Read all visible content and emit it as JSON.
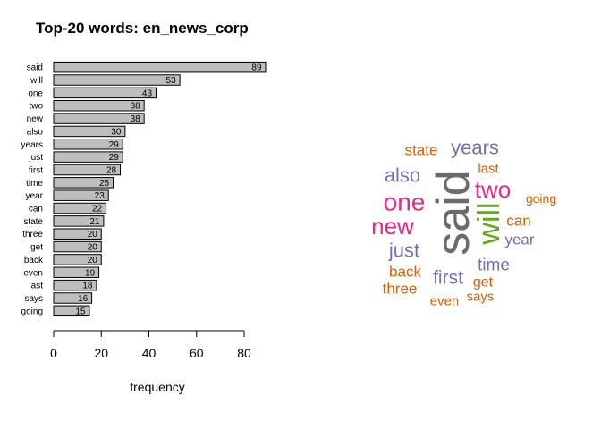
{
  "chart_data": [
    {
      "type": "bar",
      "orientation": "horizontal",
      "title": "Top-20 words: en_news_corp",
      "xlabel": "frequency",
      "ylabel": "",
      "categories": [
        "said",
        "will",
        "one",
        "two",
        "new",
        "also",
        "years",
        "just",
        "first",
        "time",
        "year",
        "can",
        "state",
        "three",
        "get",
        "back",
        "even",
        "last",
        "says",
        "going"
      ],
      "values": [
        89,
        53,
        43,
        38,
        38,
        30,
        29,
        29,
        28,
        25,
        23,
        22,
        21,
        20,
        20,
        20,
        19,
        18,
        16,
        15
      ],
      "xlim": [
        0,
        90
      ],
      "xticks": [
        0,
        20,
        40,
        60,
        80
      ],
      "bar_color": "#bebebe",
      "data_labels": true,
      "grid": false
    },
    {
      "type": "wordcloud",
      "palette": [
        "#6b6b6b",
        "#e7298a",
        "#66a61e",
        "#7570b3",
        "#d95f02"
      ],
      "words": [
        {
          "text": "said",
          "value": 89,
          "color": "#6b6b6b",
          "rotated": true
        },
        {
          "text": "will",
          "value": 53,
          "color": "#66a61e",
          "rotated": true
        },
        {
          "text": "one",
          "value": 43,
          "color": "#e7298a",
          "rotated": false
        },
        {
          "text": "two",
          "value": 38,
          "color": "#e7298a",
          "rotated": false
        },
        {
          "text": "new",
          "value": 38,
          "color": "#e7298a",
          "rotated": false
        },
        {
          "text": "also",
          "value": 30,
          "color": "#7570b3",
          "rotated": false
        },
        {
          "text": "years",
          "value": 29,
          "color": "#7570b3",
          "rotated": false
        },
        {
          "text": "just",
          "value": 29,
          "color": "#7570b3",
          "rotated": false
        },
        {
          "text": "first",
          "value": 28,
          "color": "#7570b3",
          "rotated": false
        },
        {
          "text": "time",
          "value": 25,
          "color": "#7570b3",
          "rotated": false
        },
        {
          "text": "year",
          "value": 23,
          "color": "#7570b3",
          "rotated": false
        },
        {
          "text": "can",
          "value": 22,
          "color": "#d95f02",
          "rotated": false
        },
        {
          "text": "state",
          "value": 21,
          "color": "#d95f02",
          "rotated": false
        },
        {
          "text": "three",
          "value": 20,
          "color": "#d95f02",
          "rotated": false
        },
        {
          "text": "get",
          "value": 20,
          "color": "#d95f02",
          "rotated": false
        },
        {
          "text": "back",
          "value": 20,
          "color": "#d95f02",
          "rotated": false
        },
        {
          "text": "even",
          "value": 19,
          "color": "#d95f02",
          "rotated": false
        },
        {
          "text": "last",
          "value": 18,
          "color": "#d95f02",
          "rotated": false
        },
        {
          "text": "says",
          "value": 16,
          "color": "#d95f02",
          "rotated": false
        },
        {
          "text": "going",
          "value": 15,
          "color": "#d95f02",
          "rotated": false
        }
      ]
    }
  ]
}
